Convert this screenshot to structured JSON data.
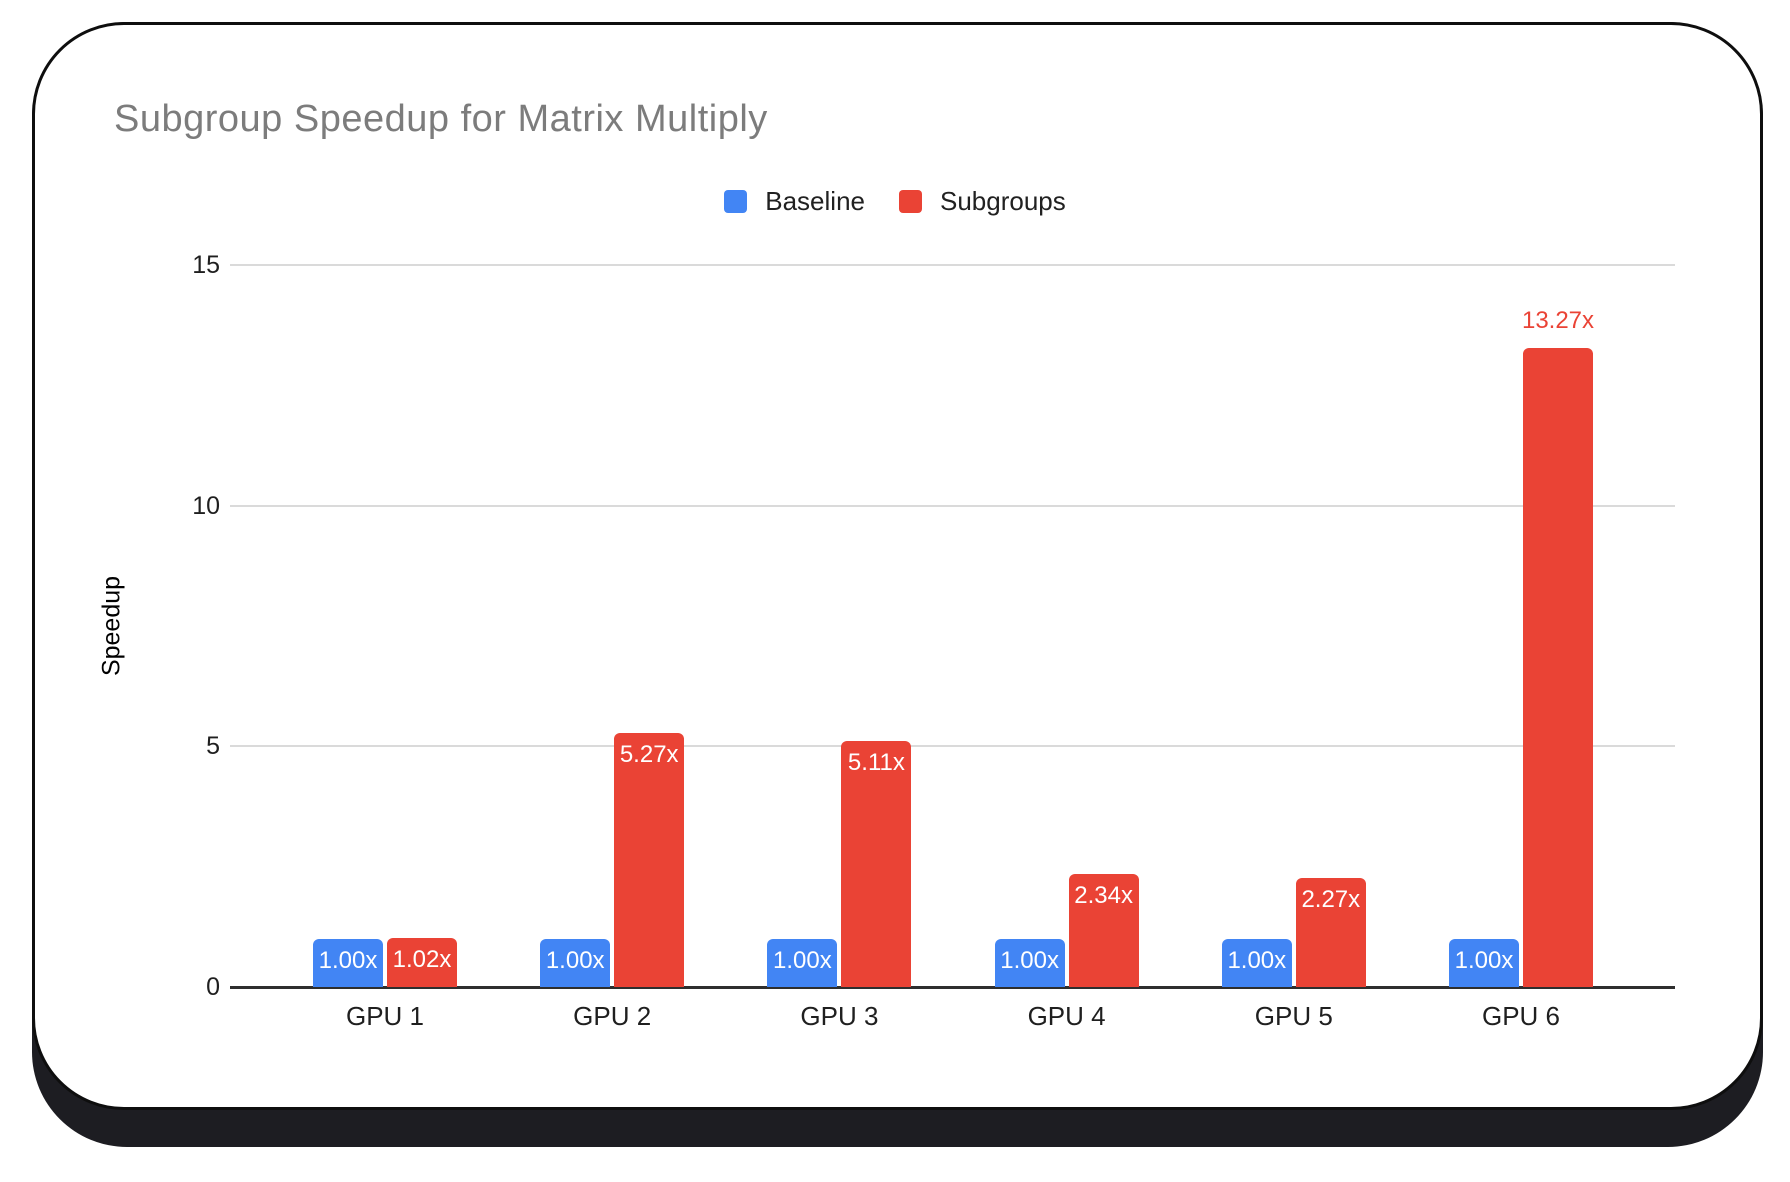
{
  "card": {
    "background": "#ffffff",
    "border_color": "#0e0e0e",
    "shadow_color": "#1d1d22"
  },
  "chart_data": {
    "type": "bar",
    "title": "Subgroup Speedup for Matrix Multiply",
    "title_color": "#7c7c7c",
    "categories": [
      "GPU 1",
      "GPU 2",
      "GPU 3",
      "GPU 4",
      "GPU 5",
      "GPU 6"
    ],
    "series": [
      {
        "name": "Baseline",
        "color": "#4285F4",
        "values": [
          1.0,
          1.0,
          1.0,
          1.0,
          1.0,
          1.0
        ],
        "data_labels": [
          "1.00x",
          "1.00x",
          "1.00x",
          "1.00x",
          "1.00x",
          "1.00x"
        ],
        "label_positions": [
          "inside",
          "inside",
          "inside",
          "inside",
          "inside",
          "inside"
        ]
      },
      {
        "name": "Subgroups",
        "color": "#EA4335",
        "values": [
          1.02,
          5.27,
          5.11,
          2.34,
          2.27,
          13.27
        ],
        "data_labels": [
          "1.02x",
          "5.27x",
          "5.11x",
          "2.34x",
          "2.27x",
          "13.27x"
        ],
        "label_positions": [
          "inside",
          "inside",
          "inside",
          "inside",
          "inside",
          "above"
        ]
      }
    ],
    "xlabel": "",
    "ylabel": "Speedup",
    "ylim": [
      0,
      15
    ],
    "yticks": [
      0,
      5,
      10,
      15
    ],
    "grid": true,
    "legend_position": "top-center",
    "data_label_color_inside": "#ffffff",
    "data_label_color_above": "#EA4335",
    "axis_text_color": "#1f1f1f",
    "gridline_color": "#dadada",
    "baseline_color": "#2e2e2e"
  }
}
